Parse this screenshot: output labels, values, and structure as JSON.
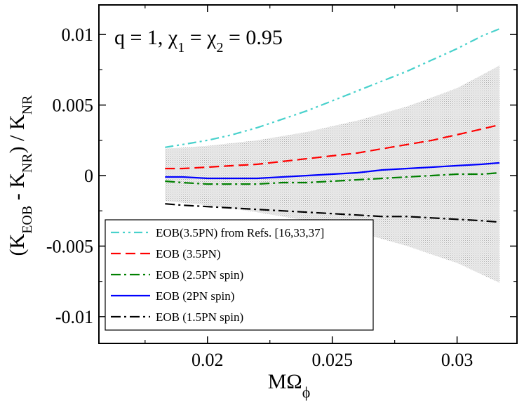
{
  "chart_data": {
    "type": "line",
    "annotation": {
      "prefix": "q = 1, ",
      "chi": "χ",
      "sub1": "1",
      "mid": " = ",
      "sub2": "2",
      "suffix": " = 0.95"
    },
    "xlabel": {
      "main": "MΩ",
      "sub": "ϕ"
    },
    "ylabel": {
      "open": "(K",
      "sub1": "EOB",
      "mid": " - K",
      "sub2": "NR",
      "close": ") / K",
      "sub3": "NR"
    },
    "xlim": [
      0.01565,
      0.0324
    ],
    "ylim": [
      -0.0119,
      0.0121
    ],
    "xticks": [
      {
        "value": 0.02,
        "label": "0.02"
      },
      {
        "value": 0.025,
        "label": "0.025"
      },
      {
        "value": 0.03,
        "label": "0.03"
      }
    ],
    "yticks": [
      {
        "value": 0.01,
        "label": "0.01"
      },
      {
        "value": 0.005,
        "label": "0.005"
      },
      {
        "value": 0,
        "label": "0"
      },
      {
        "value": -0.005,
        "label": "-0.005"
      },
      {
        "value": -0.01,
        "label": "-0.01"
      }
    ],
    "band": {
      "x": [
        0.0183,
        0.02,
        0.022,
        0.024,
        0.026,
        0.028,
        0.03,
        0.0317
      ],
      "upper": [
        0.0019,
        0.0021,
        0.0025,
        0.0031,
        0.0039,
        0.0049,
        0.0062,
        0.0078
      ],
      "lower": [
        -0.0018,
        -0.0021,
        -0.0026,
        -0.0032,
        -0.004,
        -0.005,
        -0.0062,
        -0.0076
      ],
      "color": "#d0d0d0"
    },
    "series": [
      {
        "name": "EOB(3.5PN) from Refs. [16,33,37]",
        "color": "#48d1cc",
        "dash": "12,5,3,5,3,5",
        "x": [
          0.0183,
          0.019,
          0.02,
          0.021,
          0.022,
          0.023,
          0.024,
          0.025,
          0.026,
          0.027,
          0.028,
          0.029,
          0.03,
          0.031,
          0.0317
        ],
        "y": [
          0.002,
          0.0022,
          0.0025,
          0.0029,
          0.0034,
          0.004,
          0.0046,
          0.0053,
          0.006,
          0.0067,
          0.0074,
          0.0082,
          0.009,
          0.0099,
          0.0104
        ]
      },
      {
        "name": "EOB (3.5PN)",
        "color": "#ff0000",
        "dash": "14,7",
        "x": [
          0.0183,
          0.019,
          0.02,
          0.021,
          0.022,
          0.023,
          0.024,
          0.025,
          0.026,
          0.027,
          0.028,
          0.029,
          0.03,
          0.031,
          0.0317
        ],
        "y": [
          0.0005,
          0.0005,
          0.0006,
          0.0007,
          0.0008,
          0.001,
          0.0012,
          0.0014,
          0.0016,
          0.0019,
          0.0022,
          0.0025,
          0.0029,
          0.0033,
          0.0036
        ]
      },
      {
        "name": "EOB (2.5PN spin)",
        "color": "#008000",
        "dash": "14,5,3,5",
        "x": [
          0.0183,
          0.019,
          0.02,
          0.021,
          0.022,
          0.023,
          0.024,
          0.025,
          0.026,
          0.027,
          0.028,
          0.029,
          0.03,
          0.031,
          0.0317
        ],
        "y": [
          -0.0004,
          -0.0005,
          -0.0006,
          -0.0006,
          -0.0006,
          -0.0005,
          -0.0005,
          -0.0004,
          -0.0003,
          -0.0002,
          -0.0001,
          0.0,
          0.0001,
          0.0001,
          0.0002
        ]
      },
      {
        "name": "EOB (2PN spin)",
        "color": "#0000ff",
        "dash": "",
        "x": [
          0.0183,
          0.019,
          0.02,
          0.021,
          0.022,
          0.023,
          0.024,
          0.025,
          0.026,
          0.027,
          0.028,
          0.029,
          0.03,
          0.031,
          0.0317
        ],
        "y": [
          -0.0001,
          -0.0001,
          -0.0002,
          -0.0002,
          -0.0002,
          -0.0001,
          0.0,
          0.0001,
          0.0002,
          0.0004,
          0.0005,
          0.0006,
          0.0007,
          0.0008,
          0.0009
        ]
      },
      {
        "name": "EOB (1.5PN spin)",
        "color": "#000000",
        "dash": "14,5,3,5",
        "x": [
          0.0183,
          0.019,
          0.02,
          0.021,
          0.022,
          0.023,
          0.024,
          0.025,
          0.026,
          0.027,
          0.028,
          0.029,
          0.03,
          0.031,
          0.0317
        ],
        "y": [
          -0.002,
          -0.0021,
          -0.0022,
          -0.0023,
          -0.0024,
          -0.0025,
          -0.0026,
          -0.0027,
          -0.0028,
          -0.0029,
          -0.0029,
          -0.003,
          -0.0031,
          -0.0032,
          -0.0033
        ]
      }
    ],
    "legend": {
      "position": "bottom-left"
    },
    "grid": false
  }
}
